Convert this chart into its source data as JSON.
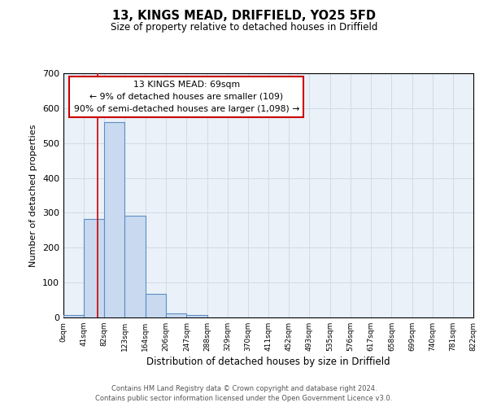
{
  "title": "13, KINGS MEAD, DRIFFIELD, YO25 5FD",
  "subtitle": "Size of property relative to detached houses in Driffield",
  "xlabel": "Distribution of detached houses by size in Driffield",
  "ylabel": "Number of detached properties",
  "bin_edges": [
    0,
    41,
    82,
    123,
    164,
    206,
    247,
    288,
    329,
    370,
    411,
    452,
    493,
    535,
    576,
    617,
    658,
    699,
    740,
    781,
    822
  ],
  "bin_counts": [
    7,
    282,
    560,
    292,
    68,
    12,
    8,
    0,
    0,
    0,
    0,
    0,
    0,
    0,
    0,
    0,
    0,
    0,
    0,
    0
  ],
  "bar_facecolor": "#c9d9f0",
  "bar_edgecolor": "#5b8ec4",
  "vline_x": 69,
  "vline_color": "#cc0000",
  "annotation_line1": "13 KINGS MEAD: 69sqm",
  "annotation_line2": "← 9% of detached houses are smaller (109)",
  "annotation_line3": "90% of semi-detached houses are larger (1,098) →",
  "annotation_box_edgecolor": "#cc0000",
  "annotation_box_facecolor": "white",
  "ylim": [
    0,
    700
  ],
  "yticks": [
    0,
    100,
    200,
    300,
    400,
    500,
    600,
    700
  ],
  "tick_labels": [
    "0sqm",
    "41sqm",
    "82sqm",
    "123sqm",
    "164sqm",
    "206sqm",
    "247sqm",
    "288sqm",
    "329sqm",
    "370sqm",
    "411sqm",
    "452sqm",
    "493sqm",
    "535sqm",
    "576sqm",
    "617sqm",
    "658sqm",
    "699sqm",
    "740sqm",
    "781sqm",
    "822sqm"
  ],
  "grid_color": "#d0dce8",
  "bg_color": "#eaf1f8",
  "footer1": "Contains HM Land Registry data © Crown copyright and database right 2024.",
  "footer2": "Contains public sector information licensed under the Open Government Licence v3.0."
}
